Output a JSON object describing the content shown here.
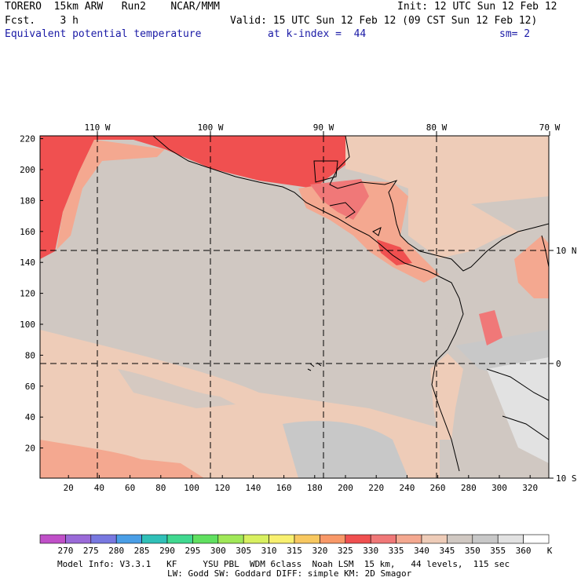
{
  "header": {
    "model": "TORERO  15km ARW   Run2    NCAR/MMM",
    "init": "Init: 12 UTC Sun 12 Feb 12",
    "fcst": "Fcst.    3 h",
    "valid": "Valid: 15 UTC Sun 12 Feb 12 (09 CST Sun 12 Feb 12)",
    "field": "Equivalent potential temperature",
    "level": "at k-index =  44",
    "smoothing": "sm= 2"
  },
  "map": {
    "lon_labels": [
      "110 W",
      "100 W",
      "90 W",
      "80 W",
      "70 W"
    ],
    "lat_labels": [
      "10 N",
      "0",
      "10 S"
    ],
    "y_ticks": [
      "220",
      "200",
      "180",
      "160",
      "140",
      "120",
      "100",
      "80",
      "60",
      "40",
      "20"
    ],
    "x_ticks": [
      "20",
      "40",
      "60",
      "80",
      "100",
      "120",
      "140",
      "160",
      "180",
      "200",
      "220",
      "240",
      "260",
      "280",
      "300",
      "320"
    ]
  },
  "colorbar": {
    "unit": "K",
    "labels": [
      "270",
      "275",
      "280",
      "285",
      "290",
      "295",
      "300",
      "305",
      "310",
      "315",
      "320",
      "325",
      "330",
      "335",
      "340",
      "345",
      "350",
      "355",
      "360"
    ],
    "colors": [
      "#c050c8",
      "#9a6ad8",
      "#7878e0",
      "#4a9ee6",
      "#30c0b8",
      "#40d890",
      "#60e060",
      "#a0e858",
      "#d8f060",
      "#f8f070",
      "#f8c860",
      "#f89868",
      "#f05050",
      "#f07878",
      "#f4a890",
      "#eeccb8",
      "#d0c8c2",
      "#c8c8c8",
      "#e2e2e2",
      "#ffffff"
    ]
  },
  "footer": {
    "line1": "Model Info: V3.3.1   KF     YSU PBL  WDM 6class  Noah LSM  15 km,   44 levels,  115 sec",
    "line2": "LW: Godd SW: Goddard DIFF: simple KM: 2D Smagor"
  }
}
